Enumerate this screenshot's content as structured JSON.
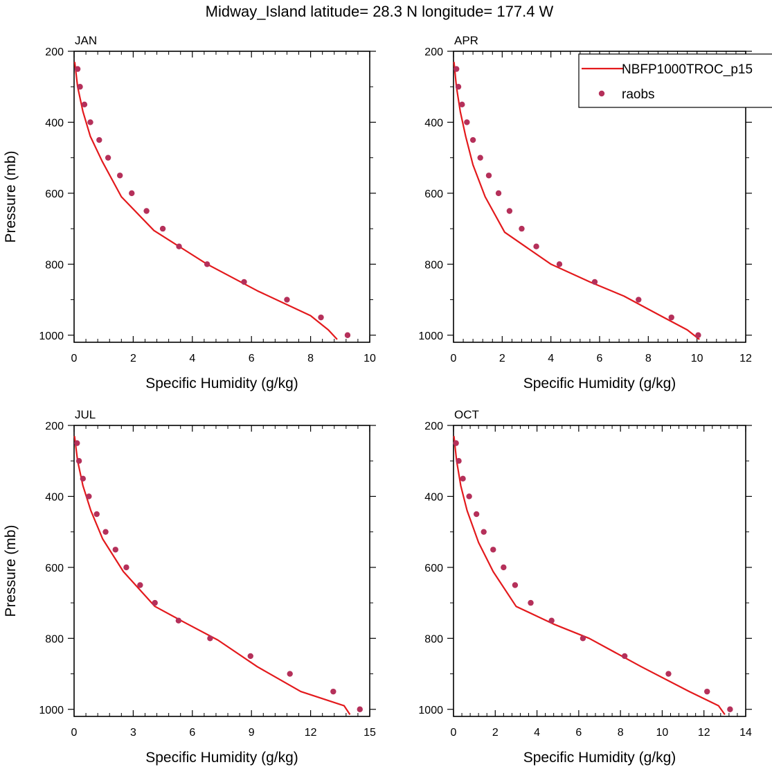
{
  "title": "Midway_Island  latitude= 28.3 N longitude= 177.4 W",
  "legend": {
    "entries": [
      {
        "label": "NBFP1000TROC_p15",
        "color": "#e3191c",
        "kind": "line"
      },
      {
        "label": "raobs",
        "color": "#b5305a",
        "kind": "marker"
      }
    ]
  },
  "chart_data": [
    {
      "type": "line",
      "panel": "JAN",
      "xlabel": "Specific Humidity (g/kg)",
      "ylabel": "Pressure (mb)",
      "xlim": [
        0,
        10
      ],
      "ylim": [
        200,
        1020
      ],
      "y_inverted": true,
      "xticks": [
        0,
        2,
        4,
        6,
        8,
        10
      ],
      "yticks": [
        200,
        400,
        600,
        800,
        1000
      ],
      "series": [
        {
          "name": "NBFP1000TROC_p15",
          "color": "#e3191c",
          "kind": "line",
          "points": [
            [
              0.02,
              230
            ],
            [
              0.12,
              300
            ],
            [
              0.3,
              370
            ],
            [
              0.55,
              440
            ],
            [
              0.95,
              510
            ],
            [
              1.6,
              610
            ],
            [
              2.7,
              705
            ],
            [
              4.5,
              800
            ],
            [
              6.2,
              875
            ],
            [
              8.0,
              945
            ],
            [
              8.6,
              985
            ],
            [
              8.9,
              1012
            ]
          ]
        },
        {
          "name": "raobs",
          "color": "#b5305a",
          "kind": "marker",
          "points": [
            [
              0.12,
              250
            ],
            [
              0.2,
              300
            ],
            [
              0.35,
              350
            ],
            [
              0.55,
              400
            ],
            [
              0.85,
              450
            ],
            [
              1.15,
              500
            ],
            [
              1.55,
              550
            ],
            [
              1.95,
              600
            ],
            [
              2.45,
              650
            ],
            [
              3.0,
              700
            ],
            [
              3.55,
              750
            ],
            [
              4.5,
              800
            ],
            [
              5.75,
              850
            ],
            [
              7.2,
              900
            ],
            [
              8.35,
              950
            ],
            [
              9.25,
              1000
            ]
          ]
        }
      ]
    },
    {
      "type": "line",
      "panel": "APR",
      "xlabel": "Specific Humidity (g/kg)",
      "ylabel": "",
      "xlim": [
        0,
        12
      ],
      "ylim": [
        200,
        1020
      ],
      "y_inverted": true,
      "xticks": [
        0,
        2,
        4,
        6,
        8,
        10,
        12
      ],
      "yticks": [
        200,
        400,
        600,
        800,
        1000
      ],
      "series": [
        {
          "name": "NBFP1000TROC_p15",
          "color": "#e3191c",
          "kind": "line",
          "points": [
            [
              0.02,
              230
            ],
            [
              0.12,
              300
            ],
            [
              0.28,
              370
            ],
            [
              0.5,
              440
            ],
            [
              0.8,
              520
            ],
            [
              1.3,
              610
            ],
            [
              2.1,
              710
            ],
            [
              4.0,
              800
            ],
            [
              5.6,
              850
            ],
            [
              7.0,
              890
            ],
            [
              8.5,
              945
            ],
            [
              9.6,
              985
            ],
            [
              10.1,
              1012
            ]
          ]
        },
        {
          "name": "raobs",
          "color": "#b5305a",
          "kind": "marker",
          "points": [
            [
              0.12,
              250
            ],
            [
              0.2,
              300
            ],
            [
              0.35,
              350
            ],
            [
              0.55,
              400
            ],
            [
              0.8,
              450
            ],
            [
              1.1,
              500
            ],
            [
              1.45,
              550
            ],
            [
              1.85,
              600
            ],
            [
              2.3,
              650
            ],
            [
              2.8,
              700
            ],
            [
              3.4,
              750
            ],
            [
              4.35,
              800
            ],
            [
              5.8,
              850
            ],
            [
              7.6,
              900
            ],
            [
              8.95,
              950
            ],
            [
              10.05,
              1000
            ]
          ]
        }
      ]
    },
    {
      "type": "line",
      "panel": "JUL",
      "xlabel": "Specific Humidity (g/kg)",
      "ylabel": "Pressure (mb)",
      "xlim": [
        0,
        15
      ],
      "ylim": [
        200,
        1020
      ],
      "y_inverted": true,
      "xticks": [
        0,
        3,
        6,
        9,
        12,
        15
      ],
      "yticks": [
        200,
        400,
        600,
        800,
        1000
      ],
      "series": [
        {
          "name": "NBFP1000TROC_p15",
          "color": "#e3191c",
          "kind": "line",
          "points": [
            [
              0.02,
              230
            ],
            [
              0.18,
              300
            ],
            [
              0.45,
              370
            ],
            [
              0.85,
              440
            ],
            [
              1.45,
              520
            ],
            [
              2.5,
              612
            ],
            [
              4.1,
              710
            ],
            [
              5.6,
              755
            ],
            [
              7.3,
              805
            ],
            [
              9.3,
              880
            ],
            [
              11.5,
              950
            ],
            [
              13.7,
              990
            ],
            [
              14.0,
              1015
            ]
          ]
        },
        {
          "name": "raobs",
          "color": "#b5305a",
          "kind": "marker",
          "points": [
            [
              0.15,
              250
            ],
            [
              0.25,
              300
            ],
            [
              0.45,
              350
            ],
            [
              0.75,
              400
            ],
            [
              1.15,
              450
            ],
            [
              1.6,
              500
            ],
            [
              2.1,
              550
            ],
            [
              2.65,
              600
            ],
            [
              3.35,
              650
            ],
            [
              4.1,
              700
            ],
            [
              5.3,
              750
            ],
            [
              6.9,
              800
            ],
            [
              8.95,
              850
            ],
            [
              10.95,
              900
            ],
            [
              13.15,
              950
            ],
            [
              14.5,
              1000
            ]
          ]
        }
      ]
    },
    {
      "type": "line",
      "panel": "OCT",
      "xlabel": "Specific Humidity (g/kg)",
      "ylabel": "",
      "xlim": [
        0,
        14
      ],
      "ylim": [
        200,
        1020
      ],
      "y_inverted": true,
      "xticks": [
        0,
        2,
        4,
        6,
        8,
        10,
        12,
        14
      ],
      "yticks": [
        200,
        400,
        600,
        800,
        1000
      ],
      "series": [
        {
          "name": "NBFP1000TROC_p15",
          "color": "#e3191c",
          "kind": "line",
          "points": [
            [
              0.02,
              230
            ],
            [
              0.15,
              300
            ],
            [
              0.35,
              370
            ],
            [
              0.65,
              440
            ],
            [
              1.2,
              530
            ],
            [
              1.9,
              612
            ],
            [
              3.0,
              710
            ],
            [
              4.8,
              760
            ],
            [
              6.5,
              800
            ],
            [
              9.0,
              880
            ],
            [
              11.3,
              950
            ],
            [
              12.7,
              990
            ],
            [
              13.0,
              1015
            ]
          ]
        },
        {
          "name": "raobs",
          "color": "#b5305a",
          "kind": "marker",
          "points": [
            [
              0.12,
              250
            ],
            [
              0.25,
              300
            ],
            [
              0.45,
              350
            ],
            [
              0.75,
              400
            ],
            [
              1.1,
              450
            ],
            [
              1.45,
              500
            ],
            [
              1.9,
              550
            ],
            [
              2.4,
              600
            ],
            [
              2.95,
              650
            ],
            [
              3.7,
              700
            ],
            [
              4.7,
              750
            ],
            [
              6.2,
              800
            ],
            [
              8.2,
              850
            ],
            [
              10.3,
              900
            ],
            [
              12.15,
              950
            ],
            [
              13.25,
              1000
            ]
          ]
        }
      ]
    }
  ]
}
